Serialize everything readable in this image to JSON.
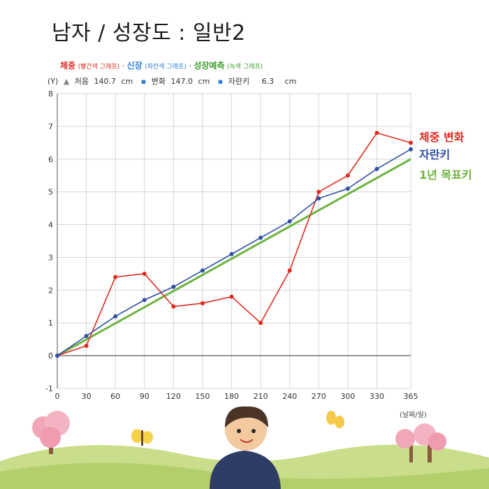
{
  "title": "남자 / 성장도 : 일반2",
  "legend": {
    "weight_label": "체중",
    "weight_note": "(빨간색 그래프)",
    "height_label": "신장",
    "height_note": "(파란색 그래프)",
    "predict_label": "성장예측",
    "predict_note": "(녹색 그래프)",
    "separator": "·"
  },
  "stats": {
    "y_marker": "(Y)",
    "start_label": "처음",
    "start_value": "140.7",
    "start_unit": "cm",
    "change_label": "변화",
    "change_value": "147.0",
    "change_unit": "cm",
    "growth_label": "자란키",
    "growth_value": "6.3",
    "growth_unit": "cm"
  },
  "side_labels": {
    "weight_change": "체중 변화",
    "grown_height": "자란키",
    "target": "1년 목표키"
  },
  "x_unit_label": "(날짜/일)",
  "colors": {
    "weight": "#e02b20",
    "height": "#2f4fa3",
    "target": "#6db33f"
  },
  "chart_data": {
    "type": "line",
    "x": [
      0,
      30,
      60,
      90,
      120,
      150,
      180,
      210,
      240,
      270,
      300,
      330,
      365
    ],
    "x_ticks": [
      "0",
      "30",
      "60",
      "90",
      "120",
      "150",
      "180",
      "210",
      "240",
      "270",
      "300",
      "330",
      "365"
    ],
    "y_ticks": [
      "-1",
      "0",
      "1",
      "2",
      "3",
      "4",
      "5",
      "6",
      "7",
      "8"
    ],
    "xlim": [
      0,
      365
    ],
    "ylim": [
      -1,
      8
    ],
    "grid": true,
    "series": [
      {
        "name": "체중 변화",
        "color": "#e02b20",
        "values": [
          0,
          0.3,
          2.4,
          2.5,
          1.5,
          1.6,
          1.8,
          1.0,
          2.6,
          5.0,
          5.5,
          6.8,
          6.5
        ]
      },
      {
        "name": "자란키",
        "color": "#2f4fa3",
        "values": [
          0,
          0.6,
          1.2,
          1.7,
          2.1,
          2.6,
          3.1,
          3.6,
          4.1,
          4.8,
          5.1,
          5.7,
          6.3
        ]
      },
      {
        "name": "1년 목표키",
        "color": "#6db33f",
        "x": [
          0,
          365
        ],
        "values": [
          0,
          6.0
        ]
      }
    ]
  }
}
